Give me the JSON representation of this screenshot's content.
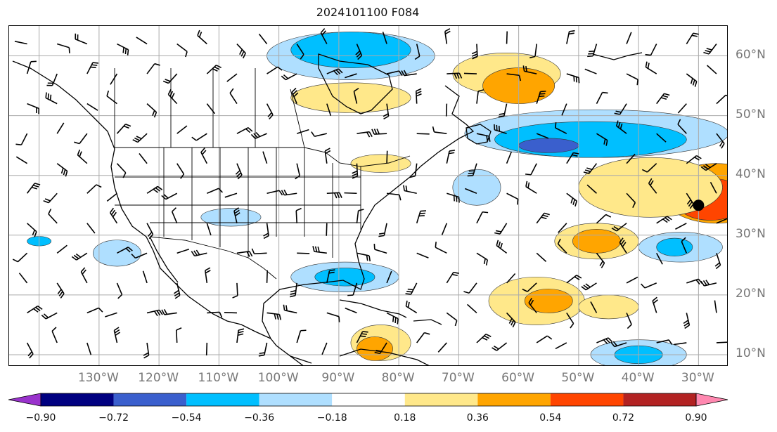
{
  "title": "2024101100 F084",
  "map": {
    "projection": "PlateCarree",
    "lon_range": [
      -145,
      -25
    ],
    "lat_range": [
      8,
      65
    ],
    "lat_labels": [
      {
        "lat": 60,
        "text": "60°N"
      },
      {
        "lat": 50,
        "text": "50°N"
      },
      {
        "lat": 40,
        "text": "40°N"
      },
      {
        "lat": 30,
        "text": "30°N"
      },
      {
        "lat": 20,
        "text": "20°N"
      },
      {
        "lat": 10,
        "text": "10°N"
      }
    ],
    "lon_labels": [
      {
        "lon": -130,
        "text": "130°W"
      },
      {
        "lon": -120,
        "text": "120°W"
      },
      {
        "lon": -110,
        "text": "110°W"
      },
      {
        "lon": -100,
        "text": "100°W"
      },
      {
        "lon": -90,
        "text": "90°W"
      },
      {
        "lon": -80,
        "text": "80°W"
      },
      {
        "lon": -70,
        "text": "70°W"
      },
      {
        "lon": -60,
        "text": "60°W"
      },
      {
        "lon": -50,
        "text": "50°W"
      },
      {
        "lon": -40,
        "text": "40°W"
      },
      {
        "lon": -30,
        "text": "30°W"
      }
    ],
    "gridlines": true,
    "features": [
      "coastlines",
      "country-borders",
      "state-borders",
      "wind-barbs",
      "filled-contours"
    ],
    "storm_marker": {
      "lon": -30,
      "lat": 35
    },
    "contour_areas": [
      {
        "level": "0.36-0.54",
        "lon": -27,
        "lat": 37,
        "rx": 9,
        "ry": 5
      },
      {
        "level": "0.54-0.72",
        "lon": -28,
        "lat": 36,
        "rx": 6,
        "ry": 3.5
      },
      {
        "level": "0.18-0.36",
        "lon": -38,
        "lat": 38,
        "rx": 12,
        "ry": 5
      },
      {
        "level": "0.18-0.36",
        "lon": -47,
        "lat": 29,
        "rx": 7,
        "ry": 3
      },
      {
        "level": "0.36-0.54",
        "lon": -47,
        "lat": 29,
        "rx": 4,
        "ry": 2
      },
      {
        "level": "-0.36--0.18",
        "lon": -47,
        "lat": 47,
        "rx": 22,
        "ry": 4
      },
      {
        "level": "-0.54--0.36",
        "lon": -48,
        "lat": 46,
        "rx": 16,
        "ry": 3
      },
      {
        "level": "-0.72--0.54",
        "lon": -55,
        "lat": 45,
        "rx": 5,
        "ry": 1.2
      },
      {
        "level": "-0.36--0.18",
        "lon": -88,
        "lat": 60,
        "rx": 14,
        "ry": 4
      },
      {
        "level": "-0.54--0.36",
        "lon": -88,
        "lat": 61,
        "rx": 10,
        "ry": 3
      },
      {
        "level": "0.18-0.36",
        "lon": -62,
        "lat": 57,
        "rx": 9,
        "ry": 3.5
      },
      {
        "level": "0.36-0.54",
        "lon": -60,
        "lat": 55,
        "rx": 6,
        "ry": 3
      },
      {
        "level": "0.18-0.36",
        "lon": -88,
        "lat": 53,
        "rx": 10,
        "ry": 2.5
      },
      {
        "level": "-0.36--0.18",
        "lon": -89,
        "lat": 23,
        "rx": 9,
        "ry": 2.5
      },
      {
        "level": "-0.54--0.36",
        "lon": -89,
        "lat": 23,
        "rx": 5,
        "ry": 1.5
      },
      {
        "level": "-0.36--0.18",
        "lon": -67,
        "lat": 38,
        "rx": 4,
        "ry": 3
      },
      {
        "level": "0.18-0.36",
        "lon": -57,
        "lat": 19,
        "rx": 8,
        "ry": 4
      },
      {
        "level": "0.36-0.54",
        "lon": -55,
        "lat": 19,
        "rx": 4,
        "ry": 2
      },
      {
        "level": "0.18-0.36",
        "lon": -45,
        "lat": 18,
        "rx": 5,
        "ry": 2
      },
      {
        "level": "-0.36--0.18",
        "lon": -33,
        "lat": 28,
        "rx": 7,
        "ry": 2.5
      },
      {
        "level": "-0.54--0.36",
        "lon": -34,
        "lat": 28,
        "rx": 3,
        "ry": 1.5
      },
      {
        "level": "-0.36--0.18",
        "lon": -40,
        "lat": 10,
        "rx": 8,
        "ry": 2.5
      },
      {
        "level": "-0.54--0.36",
        "lon": -40,
        "lat": 10,
        "rx": 4,
        "ry": 1.5
      },
      {
        "level": "0.18-0.36",
        "lon": -83,
        "lat": 42,
        "rx": 5,
        "ry": 1.5
      },
      {
        "level": "0.18-0.36",
        "lon": -83,
        "lat": 12,
        "rx": 5,
        "ry": 3
      },
      {
        "level": "0.36-0.54",
        "lon": -84,
        "lat": 11,
        "rx": 3,
        "ry": 2
      },
      {
        "level": "-0.36--0.18",
        "lon": -108,
        "lat": 33,
        "rx": 5,
        "ry": 1.5
      },
      {
        "level": "-0.36--0.18",
        "lon": -127,
        "lat": 27,
        "rx": 4,
        "ry": 2.2
      },
      {
        "level": "-0.54--0.36",
        "lon": -140,
        "lat": 29,
        "rx": 2,
        "ry": 0.8
      }
    ]
  },
  "colorbar": {
    "ticks": [
      "−0.90",
      "−0.72",
      "−0.54",
      "−0.36",
      "−0.18",
      "0.18",
      "0.36",
      "0.54",
      "0.72",
      "0.90"
    ],
    "under_color": "#9932cc",
    "over_color": "#ff88b0",
    "colors": [
      "#000080",
      "#3a5fcd",
      "#00bfff",
      "#afdfff",
      "#ffffff",
      "#ffe88a",
      "#ffa500",
      "#ff4500",
      "#b22222"
    ],
    "level_colors": {
      "-0.72--0.54": "#3a5fcd",
      "-0.54--0.36": "#00bfff",
      "-0.36--0.18": "#afdfff",
      "0.18-0.36": "#ffe88a",
      "0.36-0.54": "#ffa500",
      "0.54-0.72": "#ff4500"
    }
  }
}
